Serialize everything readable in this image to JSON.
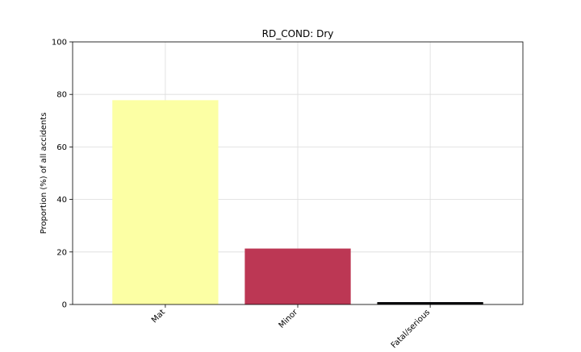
{
  "chart_data": {
    "type": "bar",
    "title": "RD_COND: Dry",
    "xlabel": "",
    "ylabel": "Proportion (%) of all accidents",
    "categories": [
      "Mat",
      "Minor",
      "Fatal/serious"
    ],
    "values": [
      77.8,
      21.3,
      0.9
    ],
    "colors": [
      "#fcffa4",
      "#bc3754",
      "#000004"
    ],
    "ylim": [
      0,
      100
    ],
    "yticks": [
      0,
      20,
      40,
      60,
      80,
      100
    ],
    "grid": true,
    "legend": "none"
  }
}
